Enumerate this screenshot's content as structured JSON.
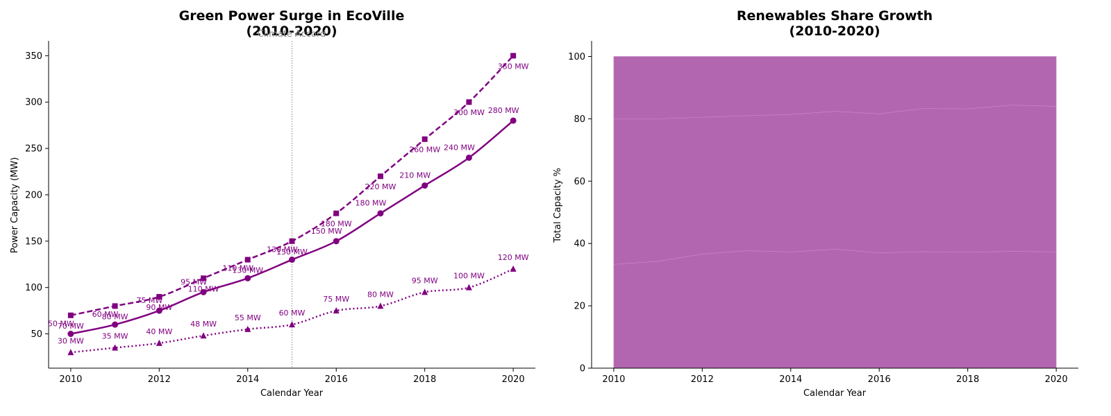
{
  "colors": {
    "series": "#800080",
    "area_fill": "#b366b0",
    "area_line": "#c58ac3",
    "vline": "#888888",
    "axis": "#000000"
  },
  "chart_data": [
    {
      "type": "line",
      "title_lines": [
        "Green Power Surge in EcoVille",
        "(2010-2020)"
      ],
      "xlabel": "Calendar Year",
      "ylabel": "Power Capacity (MW)",
      "xlim": [
        2009.5,
        2020.5
      ],
      "ylim": [
        13,
        366
      ],
      "xticks": [
        2010,
        2012,
        2014,
        2016,
        2018,
        2020
      ],
      "yticks": [
        50,
        100,
        150,
        200,
        250,
        300,
        350
      ],
      "x": [
        2010,
        2011,
        2012,
        2013,
        2014,
        2015,
        2016,
        2017,
        2018,
        2019,
        2020
      ],
      "grid": false,
      "legend": "none",
      "annotation": {
        "x": 2015,
        "text": "Climate Accord"
      },
      "series": [
        {
          "style": "solid",
          "marker": "circle",
          "values": [
            50,
            60,
            75,
            95,
            110,
            130,
            150,
            180,
            210,
            240,
            280
          ],
          "labels": [
            "50 MW",
            "60 MW",
            "75 MW",
            "95 MW",
            "110 MW",
            "130 MW",
            "150 MW",
            "180 MW",
            "210 MW",
            "240 MW",
            "280 MW"
          ]
        },
        {
          "style": "dashed",
          "marker": "square",
          "values": [
            70,
            80,
            90,
            110,
            130,
            150,
            180,
            220,
            260,
            300,
            350
          ],
          "labels": [
            "70 MW",
            "80 MW",
            "90 MW",
            "110 MW",
            "130 MW",
            "150 MW",
            "180 MW",
            "220 MW",
            "260 MW",
            "300 MW",
            "350 MW"
          ]
        },
        {
          "style": "dotted",
          "marker": "triangle",
          "values": [
            30,
            35,
            40,
            48,
            55,
            60,
            75,
            80,
            95,
            100,
            120
          ],
          "labels": [
            "30 MW",
            "35 MW",
            "40 MW",
            "48 MW",
            "55 MW",
            "60 MW",
            "75 MW",
            "80 MW",
            "95 MW",
            "100 MW",
            "120 MW"
          ]
        }
      ]
    },
    {
      "type": "area",
      "stacked": true,
      "percent": true,
      "title_lines": [
        "Renewables Share Growth",
        "(2010-2020)"
      ],
      "xlabel": "Calendar Year",
      "ylabel": "Total Capacity %",
      "xlim": [
        2009.5,
        2020.5
      ],
      "ylim": [
        0,
        105
      ],
      "xticks": [
        2010,
        2012,
        2014,
        2016,
        2018,
        2020
      ],
      "yticks": [
        0,
        20,
        40,
        60,
        80,
        100
      ],
      "x": [
        2010,
        2011,
        2012,
        2013,
        2014,
        2015,
        2016,
        2017,
        2018,
        2019,
        2020
      ],
      "grid": false,
      "legend": "none",
      "boundaries": [
        [
          33.3,
          34.3,
          36.6,
          37.7,
          37.3,
          38.2,
          37.0,
          37.4,
          37.2,
          37.5,
          37.3
        ],
        [
          80.0,
          80.0,
          80.5,
          81.0,
          81.4,
          82.4,
          81.6,
          83.3,
          83.2,
          84.4,
          84.0
        ],
        [
          100,
          100,
          100,
          100,
          100,
          100,
          100,
          100,
          100,
          100,
          100
        ]
      ]
    }
  ]
}
